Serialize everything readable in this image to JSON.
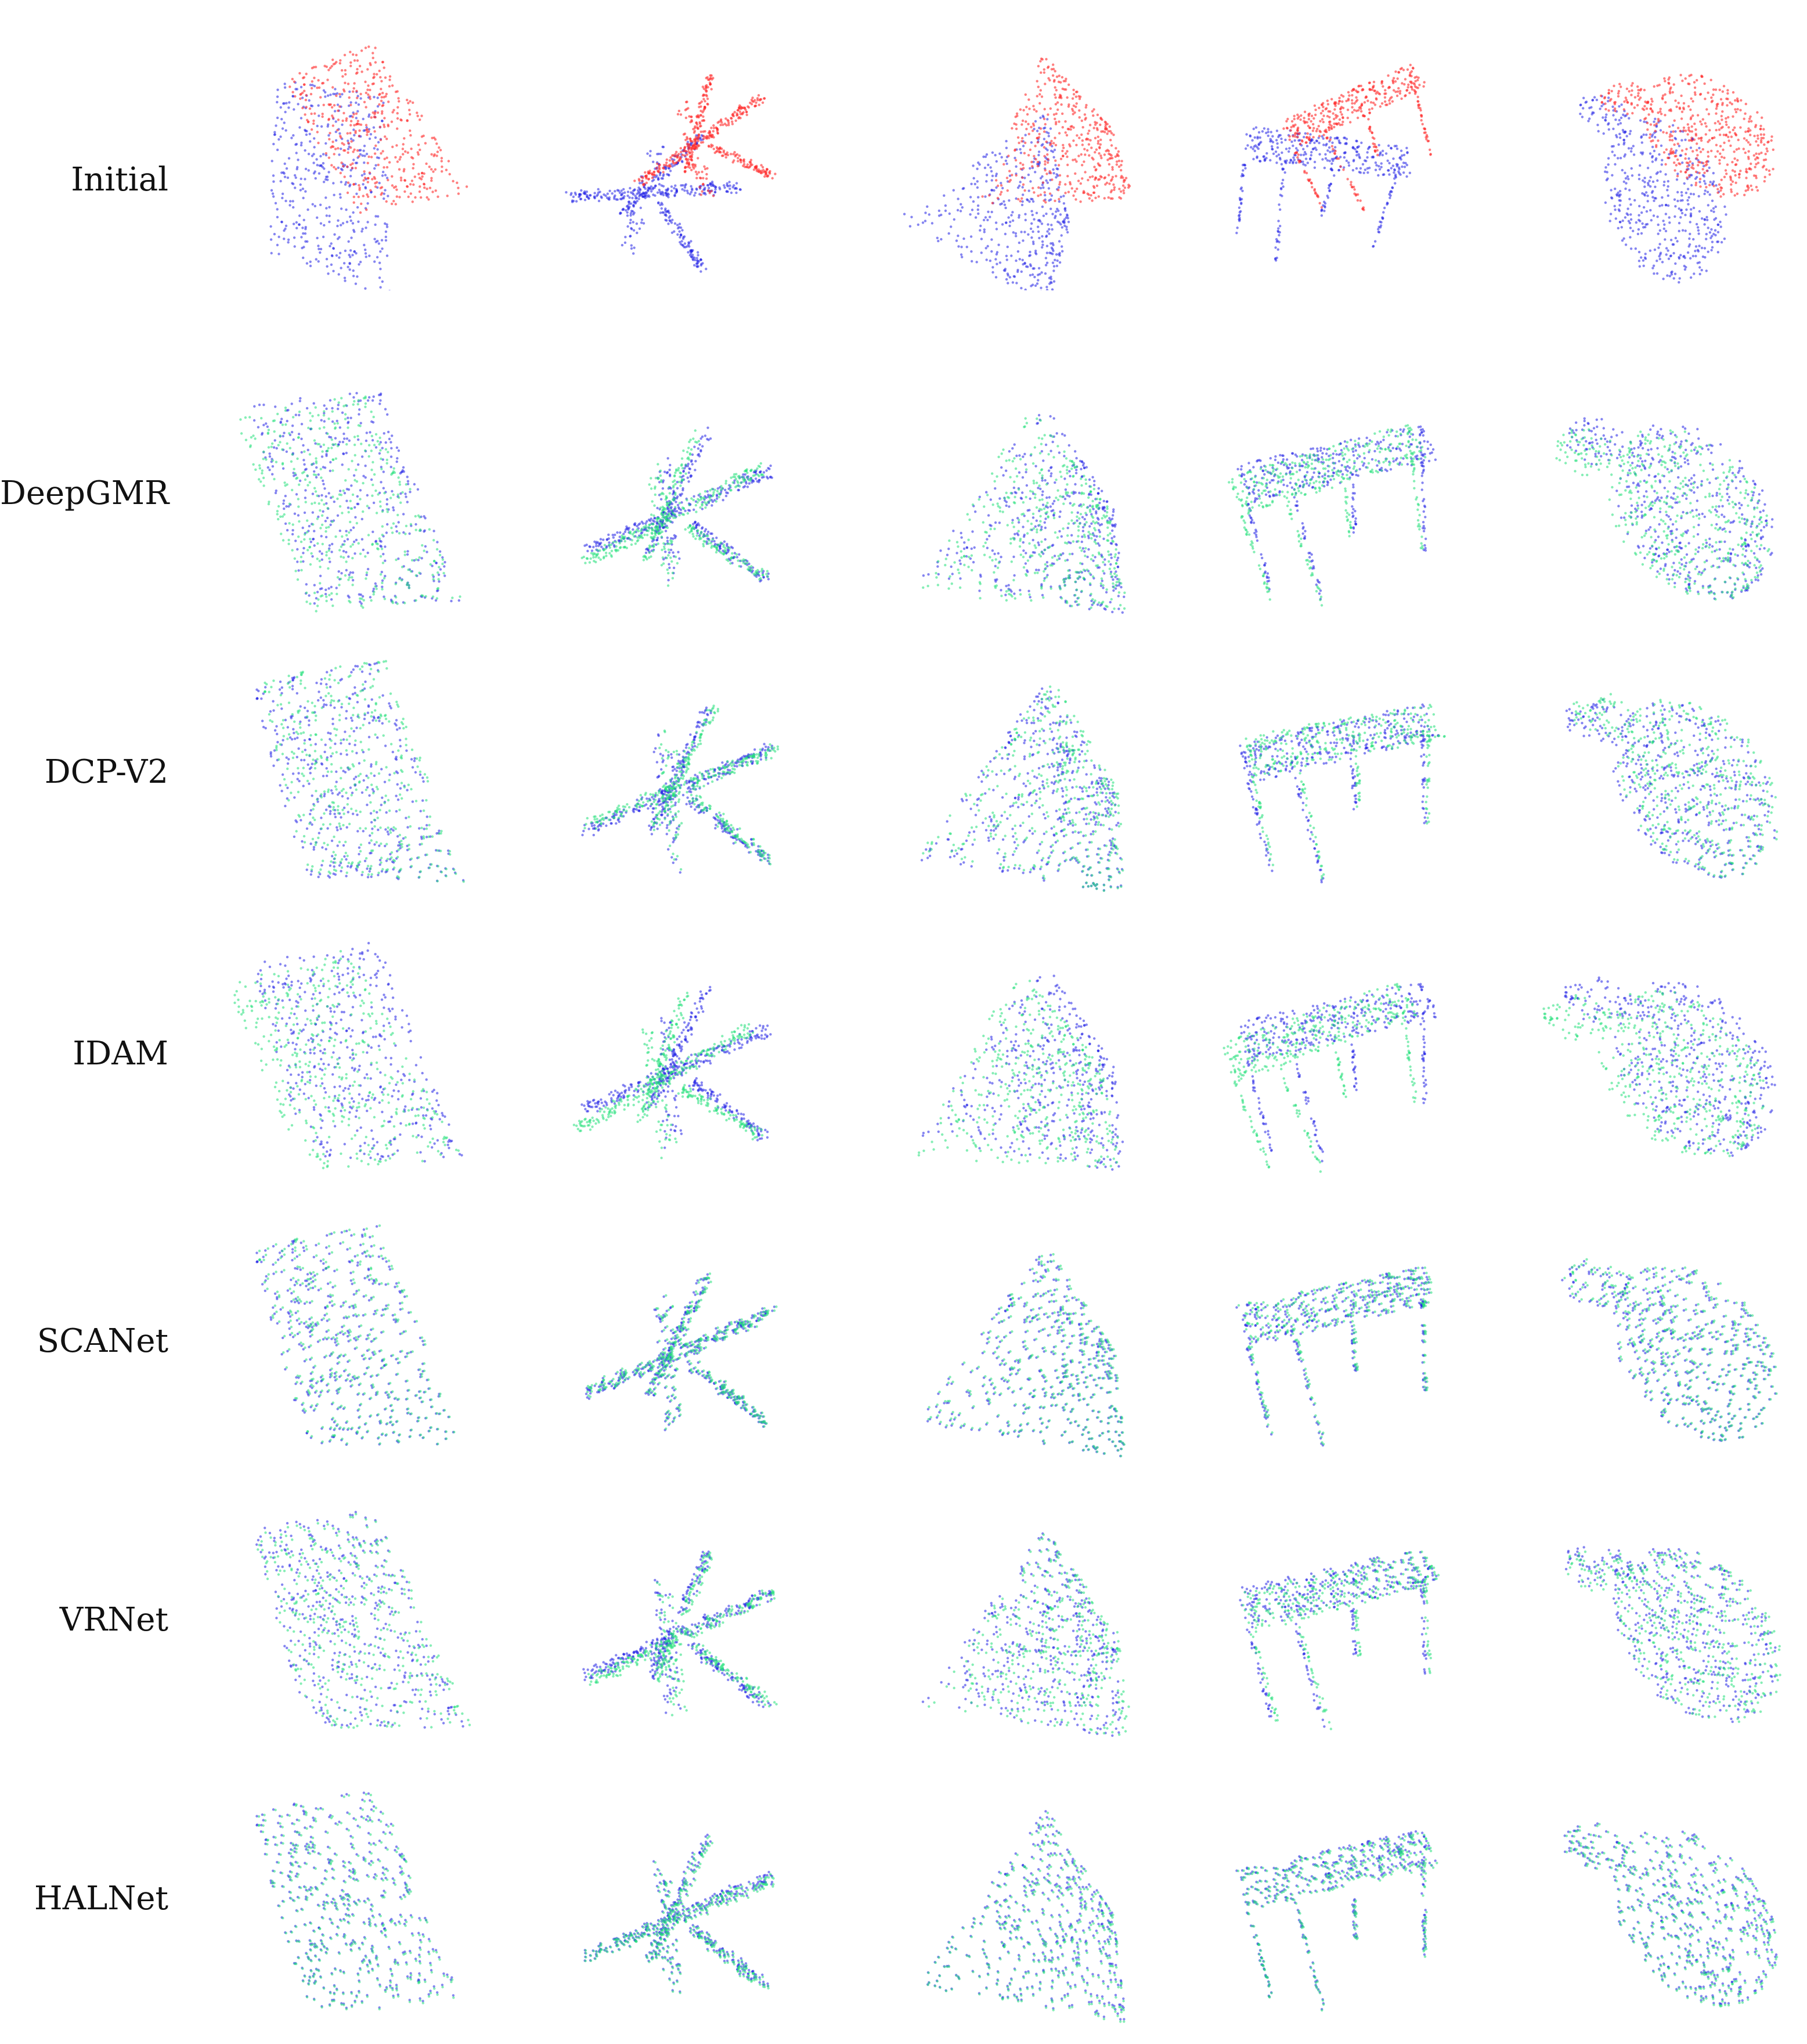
{
  "figure": {
    "rows": [
      {
        "id": "initial",
        "label": "Initial"
      },
      {
        "id": "deepgmr",
        "label": "DeepGMR"
      },
      {
        "id": "dcp",
        "label": "DCP-V2"
      },
      {
        "id": "idam",
        "label": "IDAM"
      },
      {
        "id": "scanet",
        "label": "SCANet"
      },
      {
        "id": "vrnet",
        "label": "VRNet"
      },
      {
        "id": "halnet",
        "label": "HALNet"
      }
    ],
    "objects": [
      "wall",
      "airplane",
      "chair-cone",
      "table",
      "vase"
    ],
    "colors": {
      "source": "#2323e6",
      "template": "#ff2b2b",
      "aligned": "#22e07a",
      "label_text": "#111111",
      "background": "#ffffff"
    }
  }
}
